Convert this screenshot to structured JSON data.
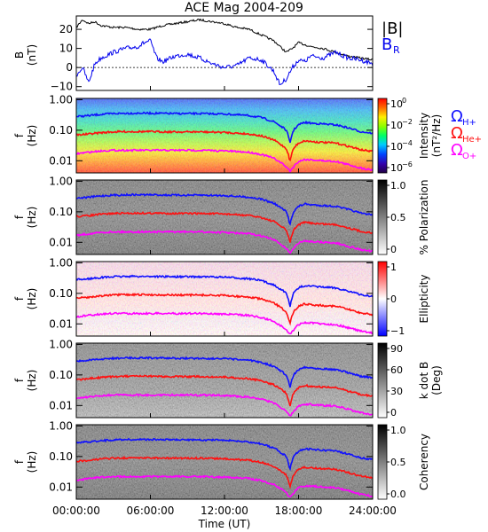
{
  "title": "ACE Mag 2004-209",
  "x_axis": {
    "label": "Time (UT)",
    "tick_labels": [
      "00:00:00",
      "06:00:00",
      "12:00:00",
      "18:00:00",
      "24:00:00"
    ]
  },
  "legend_top": {
    "b_label": "|B|",
    "br_label": "B",
    "br_sub": "R"
  },
  "freq_legend": {
    "h_symbol": "Ω",
    "h_sub": "H+",
    "he_symbol": "Ω",
    "he_sub": "He+",
    "o_symbol": "Ω",
    "o_sub": "O+"
  },
  "colors": {
    "b_line": "#000000",
    "br_line": "#0000ee",
    "h_line": "#1010ff",
    "he_line": "#ff1010",
    "o_line": "#ff00ff"
  },
  "panels": {
    "bfield": {
      "ylabel": "B",
      "yunit": "(nT)",
      "ticks": [
        {
          "v": 20,
          "label": "20"
        },
        {
          "v": 10,
          "label": "10"
        },
        {
          "v": 0,
          "label": "0"
        },
        {
          "v": -10,
          "label": "−10"
        }
      ]
    },
    "freq": {
      "ylabel": "f",
      "yunit": "(Hz)",
      "ticks": [
        {
          "v": 1.0,
          "label": "1.00"
        },
        {
          "v": 0.1,
          "label": "0.10"
        },
        {
          "v": 0.01,
          "label": "0.01"
        }
      ]
    },
    "intensity": {
      "cb_title": "Intensity",
      "cb_unit": "(nT²/Hz)",
      "cb_ticks": [
        {
          "base": "10",
          "exp": "0"
        },
        {
          "base": "10",
          "exp": "−2"
        },
        {
          "base": "10",
          "exp": "−4"
        },
        {
          "base": "10",
          "exp": "−6"
        }
      ]
    },
    "polarization": {
      "cb_title": "% Polarization",
      "cb_ticks": [
        "1.0",
        "0.5",
        "0"
      ]
    },
    "ellipticity": {
      "cb_title": "Ellipticity",
      "cb_ticks": [
        "1",
        "0",
        "−1"
      ]
    },
    "kdotb": {
      "cb_title": "k dot B",
      "cb_unit": "(Deg)",
      "cb_ticks": [
        "90",
        "60",
        "30",
        "0"
      ]
    },
    "coherency": {
      "cb_title": "Coherency",
      "cb_ticks": [
        "1.0",
        "0.5",
        "0.0"
      ]
    }
  },
  "chart_data": {
    "type": "line",
    "x_range_hours": [
      0,
      24
    ],
    "panel_1": {
      "ylim": [
        -12,
        27
      ],
      "series": [
        {
          "name": "|B|",
          "x": [
            0,
            0.5,
            1,
            1.5,
            2,
            3,
            4,
            5,
            6,
            7,
            8,
            9,
            10,
            11,
            12,
            13,
            14,
            15,
            16,
            16.5,
            17,
            17.5,
            18,
            18.5,
            19,
            20,
            21,
            22,
            23,
            24
          ],
          "y": [
            21,
            25,
            23,
            24,
            22,
            21,
            21,
            20,
            20,
            22,
            23,
            24,
            25,
            24,
            23,
            21,
            20,
            17,
            14,
            11,
            8,
            10,
            13,
            12,
            11,
            10,
            8,
            6,
            5,
            4
          ]
        },
        {
          "name": "B_R",
          "x": [
            0,
            0.5,
            1,
            1.5,
            2,
            3,
            4,
            5,
            5.5,
            6,
            6.5,
            7,
            8,
            9,
            10,
            11,
            12,
            13,
            14,
            15,
            16,
            16.5,
            17,
            17.5,
            18,
            18.5,
            19,
            20,
            21,
            22,
            23,
            24
          ],
          "y": [
            -4,
            0,
            -8,
            2,
            5,
            8,
            10,
            11,
            13,
            14,
            5,
            3,
            6,
            7,
            5,
            2,
            0,
            1,
            5,
            4,
            -2,
            -9,
            -6,
            0,
            4,
            3,
            6,
            5,
            8,
            5,
            4,
            2
          ]
        }
      ]
    },
    "frequency_panels": {
      "panel_titles": [
        "Intensity",
        "% Polarization",
        "Ellipticity",
        "k dot B",
        "Coherency"
      ],
      "ylim_hz": [
        0.004,
        1.1
      ],
      "y_scale": "log",
      "series": [
        {
          "name": "Ω H+",
          "x": [
            0,
            1,
            2,
            3,
            4,
            6,
            8,
            10,
            12,
            13,
            14,
            15,
            15.5,
            16,
            16.5,
            17,
            17.3,
            17.6,
            18,
            18.5,
            19,
            19.5,
            20,
            21,
            22,
            23,
            24
          ],
          "y": [
            0.28,
            0.3,
            0.33,
            0.35,
            0.36,
            0.36,
            0.35,
            0.35,
            0.34,
            0.32,
            0.3,
            0.26,
            0.22,
            0.19,
            0.14,
            0.1,
            0.035,
            0.1,
            0.15,
            0.18,
            0.17,
            0.165,
            0.16,
            0.15,
            0.12,
            0.09,
            0.08
          ]
        },
        {
          "name": "Ω He+",
          "x": [
            0,
            1,
            2,
            3,
            4,
            6,
            8,
            10,
            12,
            13,
            14,
            15,
            15.5,
            16,
            16.5,
            17,
            17.3,
            17.6,
            18,
            18.5,
            19,
            19.5,
            20,
            21,
            22,
            23,
            24
          ],
          "y": [
            0.07,
            0.075,
            0.083,
            0.088,
            0.09,
            0.09,
            0.088,
            0.088,
            0.085,
            0.08,
            0.075,
            0.065,
            0.055,
            0.048,
            0.035,
            0.025,
            0.009,
            0.025,
            0.038,
            0.045,
            0.043,
            0.041,
            0.04,
            0.038,
            0.03,
            0.023,
            0.02
          ]
        },
        {
          "name": "Ω O+",
          "x": [
            0,
            1,
            2,
            3,
            4,
            6,
            8,
            10,
            12,
            13,
            14,
            15,
            15.5,
            16,
            16.5,
            17,
            17.3,
            17.6,
            18,
            18.5,
            19,
            19.5,
            20,
            21,
            22,
            23,
            24
          ],
          "y": [
            0.017,
            0.019,
            0.021,
            0.022,
            0.022,
            0.022,
            0.022,
            0.022,
            0.021,
            0.02,
            0.019,
            0.016,
            0.014,
            0.012,
            0.009,
            0.0063,
            0.0045,
            0.0063,
            0.0095,
            0.011,
            0.0108,
            0.0103,
            0.01,
            0.0095,
            0.0075,
            0.0058,
            0.005
          ]
        }
      ]
    }
  }
}
